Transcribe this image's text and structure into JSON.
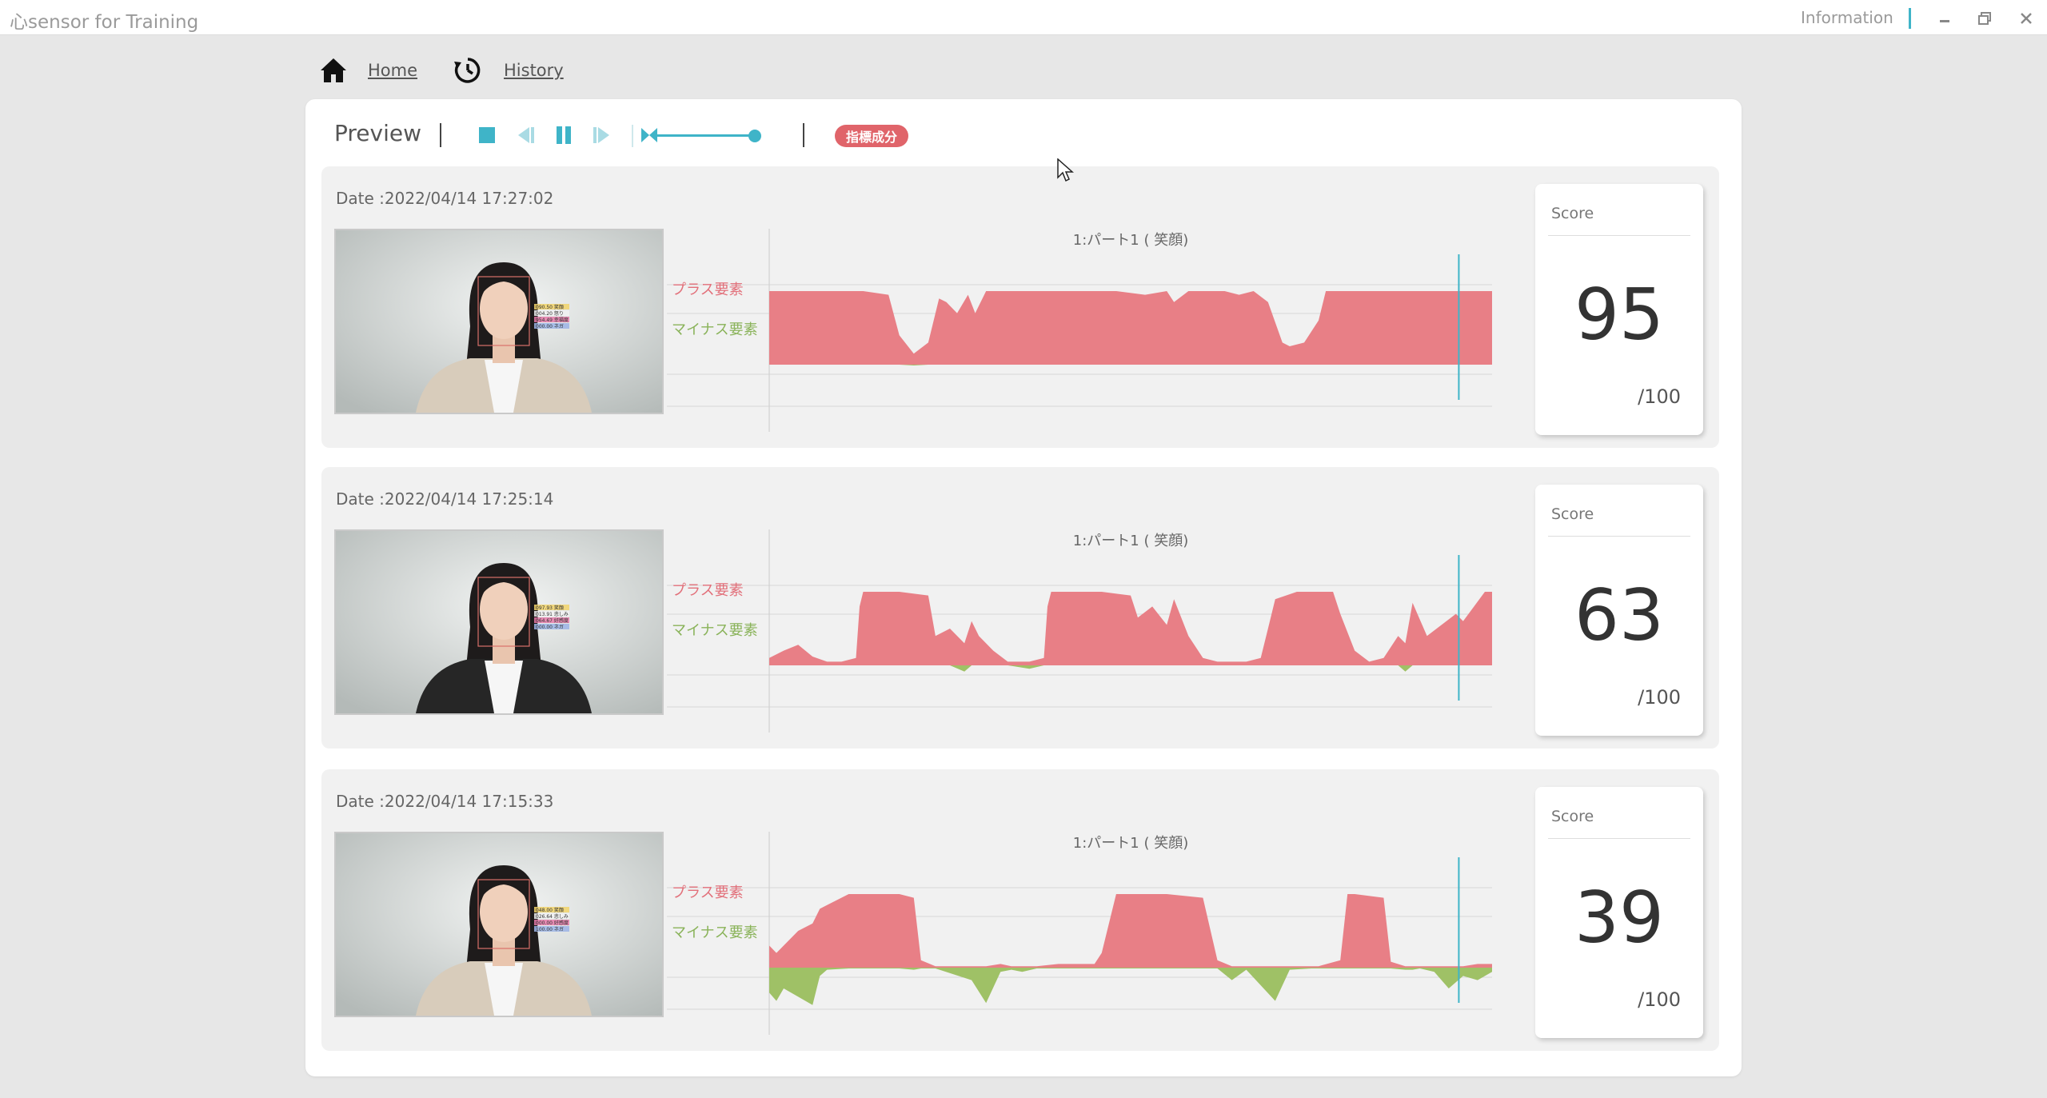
{
  "app": {
    "title": "心sensor for Training",
    "info_label": "Information"
  },
  "nav": {
    "home": "Home",
    "history": "History"
  },
  "preview": {
    "title": "Preview",
    "badge": "指標成分",
    "slider_position": 1.0
  },
  "colors": {
    "accent": "#3fb4c8",
    "plus": "#e87f86",
    "minus": "#9fc166",
    "badge": "#e0646a"
  },
  "sessions": [
    {
      "date": "Date :2022/04/14 17:27:02",
      "score_label": "Score",
      "score": "95",
      "score_denominator": "/100",
      "overlay": [
        "090.50 笑顔",
        "004.20 怒り",
        "954.49 幸福度",
        "000.00 ネガ"
      ]
    },
    {
      "date": "Date :2022/04/14 17:25:14",
      "score_label": "Score",
      "score": "63",
      "score_denominator": "/100",
      "overlay": [
        "097.93 笑顔",
        "013.91 悲しみ",
        "064.67 好感度",
        "000.00 ネガ"
      ]
    },
    {
      "date": "Date :2022/04/14 17:15:33",
      "score_label": "Score",
      "score": "39",
      "score_denominator": "/100",
      "overlay": [
        "048.00 笑顔",
        "026.64 悲しみ",
        "000.00 好感度",
        "100.00 ネガ"
      ]
    }
  ],
  "chart_data": [
    {
      "type": "area",
      "title": "1:パート1 ( 笑顔)",
      "row_labels": [
        "プラス要素",
        "マイナス要素"
      ],
      "x": [
        0.0,
        0.03,
        0.06,
        0.09,
        0.13,
        0.165,
        0.18,
        0.2,
        0.22,
        0.235,
        0.245,
        0.26,
        0.275,
        0.285,
        0.3,
        0.33,
        0.4,
        0.48,
        0.52,
        0.55,
        0.56,
        0.58,
        0.6,
        0.63,
        0.65,
        0.67,
        0.69,
        0.71,
        0.72,
        0.74,
        0.76,
        0.77,
        0.79,
        0.81,
        0.83,
        0.845,
        0.87,
        0.9,
        0.95,
        1.0
      ],
      "plus": [
        1.0,
        1.0,
        1.0,
        1.0,
        1.0,
        0.95,
        0.4,
        0.15,
        0.3,
        0.9,
        0.85,
        0.7,
        0.95,
        0.7,
        1.0,
        1.0,
        1.0,
        1.0,
        0.95,
        1.0,
        0.85,
        1.0,
        1.0,
        1.0,
        0.95,
        1.0,
        0.85,
        0.3,
        0.25,
        0.3,
        0.6,
        1.0,
        1.0,
        1.0,
        1.0,
        1.0,
        1.0,
        1.0,
        1.0,
        1.0
      ],
      "minus": [
        0,
        0,
        0,
        0,
        0,
        0,
        0,
        0.02,
        0,
        0,
        0,
        0,
        0,
        0,
        0,
        0,
        0,
        0,
        0,
        0,
        0,
        0,
        0,
        0,
        0,
        0,
        0,
        0,
        0,
        0,
        0,
        0,
        0,
        0,
        0,
        0,
        0,
        0,
        0,
        0
      ]
    },
    {
      "type": "area",
      "title": "1:パート1 ( 笑顔)",
      "row_labels": [
        "プラス要素",
        "マイナス要素"
      ],
      "x": [
        0.0,
        0.02,
        0.04,
        0.06,
        0.08,
        0.1,
        0.12,
        0.125,
        0.13,
        0.15,
        0.18,
        0.22,
        0.23,
        0.25,
        0.27,
        0.28,
        0.29,
        0.31,
        0.33,
        0.36,
        0.38,
        0.385,
        0.39,
        0.42,
        0.46,
        0.5,
        0.51,
        0.53,
        0.55,
        0.56,
        0.58,
        0.6,
        0.62,
        0.66,
        0.68,
        0.69,
        0.7,
        0.73,
        0.78,
        0.79,
        0.81,
        0.83,
        0.85,
        0.87,
        0.88,
        0.89,
        0.91,
        0.95,
        0.96,
        0.99,
        1.0
      ],
      "plus": [
        0.1,
        0.2,
        0.28,
        0.12,
        0.05,
        0.05,
        0.1,
        0.8,
        1.0,
        1.0,
        1.0,
        0.95,
        0.4,
        0.5,
        0.3,
        0.6,
        0.4,
        0.2,
        0.05,
        0.05,
        0.1,
        0.8,
        1.0,
        1.0,
        1.0,
        0.95,
        0.65,
        0.8,
        0.55,
        0.9,
        0.4,
        0.1,
        0.05,
        0.05,
        0.1,
        0.5,
        0.9,
        1.0,
        1.0,
        0.7,
        0.2,
        0.05,
        0.1,
        0.4,
        0.3,
        0.85,
        0.4,
        0.7,
        0.6,
        1.0,
        1.0
      ],
      "minus": [
        0,
        0,
        0,
        0,
        0,
        0,
        0,
        0,
        0,
        0,
        0,
        0,
        0,
        0,
        0.15,
        0,
        0,
        0,
        0,
        0.08,
        0,
        0,
        0,
        0,
        0,
        0,
        0,
        0,
        0,
        0,
        0,
        0,
        0,
        0,
        0,
        0,
        0,
        0,
        0,
        0,
        0,
        0,
        0,
        0,
        0.15,
        0,
        0,
        0,
        0,
        0,
        0
      ]
    },
    {
      "type": "area",
      "title": "1:パート1 ( 笑顔)",
      "row_labels": [
        "プラス要素",
        "マイナス要素"
      ],
      "x": [
        0.0,
        0.01,
        0.02,
        0.04,
        0.06,
        0.07,
        0.08,
        0.11,
        0.14,
        0.18,
        0.2,
        0.21,
        0.23,
        0.28,
        0.3,
        0.32,
        0.335,
        0.35,
        0.37,
        0.4,
        0.45,
        0.46,
        0.48,
        0.5,
        0.55,
        0.6,
        0.62,
        0.64,
        0.66,
        0.7,
        0.72,
        0.75,
        0.76,
        0.79,
        0.8,
        0.81,
        0.85,
        0.86,
        0.88,
        0.89,
        0.9,
        0.92,
        0.94,
        0.96,
        0.98,
        1.0
      ],
      "plus": [
        0.3,
        0.2,
        0.3,
        0.5,
        0.6,
        0.8,
        0.85,
        1.0,
        1.0,
        1.0,
        0.95,
        0.1,
        0.02,
        0.02,
        0.02,
        0.05,
        0.02,
        0.02,
        0.02,
        0.05,
        0.05,
        0.2,
        1.0,
        1.0,
        1.0,
        0.95,
        0.1,
        0.02,
        0.02,
        0.02,
        0.02,
        0.02,
        0.02,
        0.1,
        1.0,
        1.0,
        0.95,
        0.08,
        0.02,
        0.02,
        0.02,
        0.02,
        0.02,
        0.02,
        0.05,
        0.05
      ],
      "minus": [
        0.6,
        0.8,
        0.5,
        0.7,
        0.9,
        0.2,
        0.05,
        0.02,
        0.02,
        0.02,
        0.05,
        0.02,
        0.02,
        0.3,
        0.85,
        0.1,
        0.05,
        0.1,
        0.02,
        0.02,
        0.02,
        0.02,
        0.02,
        0.02,
        0.02,
        0.02,
        0.02,
        0.3,
        0.05,
        0.8,
        0.05,
        0.02,
        0.02,
        0.02,
        0.02,
        0.02,
        0.02,
        0.02,
        0.05,
        0.05,
        0.02,
        0.1,
        0.5,
        0.2,
        0.3,
        0.1
      ]
    }
  ]
}
